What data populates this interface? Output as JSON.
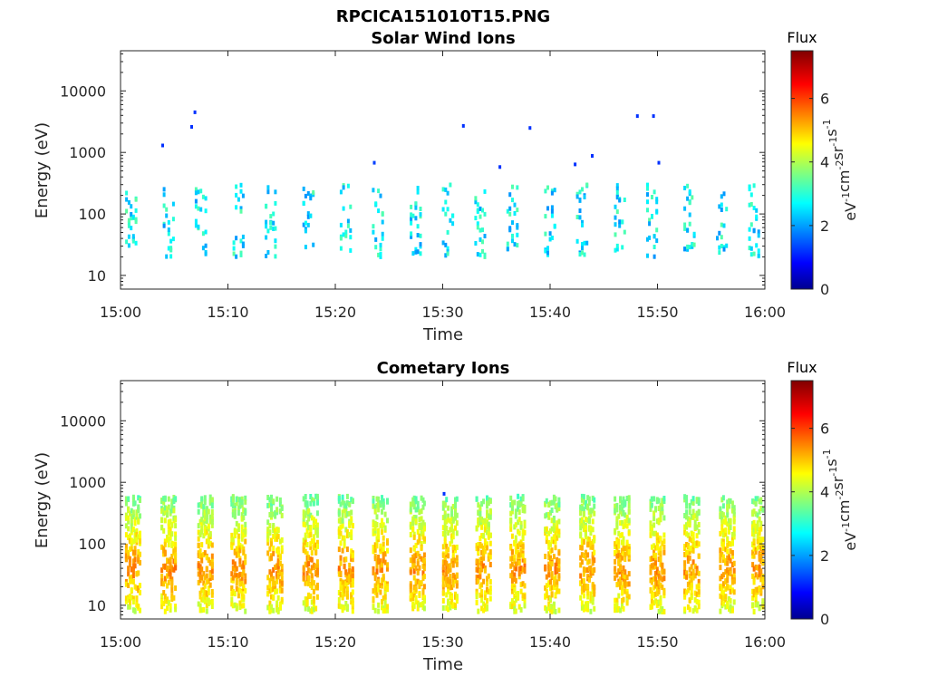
{
  "figure": {
    "title": "RPCICA151010T15.PNG"
  },
  "chart_data": [
    {
      "type": "heatmap",
      "title": "Solar Wind Ions",
      "xlabel": "Time",
      "ylabel": "Energy (eV)",
      "x_ticks": [
        "15:00",
        "15:10",
        "15:20",
        "15:30",
        "15:40",
        "15:50",
        "16:00"
      ],
      "x_range_minutes": [
        0,
        60
      ],
      "y_scale": "log",
      "y_range": [
        6,
        45000
      ],
      "y_ticks": [
        10,
        100,
        1000,
        10000
      ],
      "y_tick_labels": [
        "10",
        "100",
        "1000",
        "10000"
      ],
      "colorbar": {
        "label": "Flux",
        "unit_label": "eV-1cm-2sr-1s-1",
        "range": [
          0,
          7.5
        ],
        "ticks": [
          0,
          2,
          4,
          6
        ],
        "tick_labels": [
          "0",
          "2",
          "4",
          "6"
        ],
        "colormap": "jet"
      },
      "bursts_minutes": [
        1,
        4.5,
        7.5,
        11,
        14,
        17.5,
        21,
        24,
        27.5,
        30.5,
        33.5,
        36.5,
        40,
        43,
        46.5,
        49.5,
        53,
        56,
        59
      ],
      "burst_energy_range_eV": [
        20,
        300
      ],
      "typical_flux": [
        2,
        3.5
      ],
      "sparse_points": [
        {
          "t": 6.8,
          "e": 4500,
          "f": 1.3
        },
        {
          "t": 6.5,
          "e": 2600,
          "f": 1.3
        },
        {
          "t": 3.8,
          "e": 1300,
          "f": 1.3
        },
        {
          "t": 23.5,
          "e": 680,
          "f": 1.4
        },
        {
          "t": 31.8,
          "e": 2700,
          "f": 1.3
        },
        {
          "t": 35.2,
          "e": 580,
          "f": 1.3
        },
        {
          "t": 38,
          "e": 2500,
          "f": 1.3
        },
        {
          "t": 42.2,
          "e": 640,
          "f": 1.3
        },
        {
          "t": 43.8,
          "e": 880,
          "f": 1.3
        },
        {
          "t": 48,
          "e": 3900,
          "f": 1.3
        },
        {
          "t": 49.5,
          "e": 3900,
          "f": 1.3
        },
        {
          "t": 50,
          "e": 680,
          "f": 1.3
        }
      ]
    },
    {
      "type": "heatmap",
      "title": "Cometary Ions",
      "xlabel": "Time",
      "ylabel": "Energy (eV)",
      "x_ticks": [
        "15:00",
        "15:10",
        "15:20",
        "15:30",
        "15:40",
        "15:50",
        "16:00"
      ],
      "x_range_minutes": [
        0,
        60
      ],
      "y_scale": "log",
      "y_range": [
        6,
        45000
      ],
      "y_ticks": [
        10,
        100,
        1000,
        10000
      ],
      "y_tick_labels": [
        "10",
        "100",
        "1000",
        "10000"
      ],
      "colorbar": {
        "label": "Flux",
        "unit_label": "eV-1cm-2sr-1s-1",
        "range": [
          0,
          7.5
        ],
        "ticks": [
          0,
          2,
          4,
          6
        ],
        "tick_labels": [
          "0",
          "2",
          "4",
          "6"
        ],
        "colormap": "jet"
      },
      "bursts_minutes": [
        1,
        4.3,
        7.7,
        10.8,
        14.2,
        17.5,
        20.8,
        24,
        27.5,
        30.5,
        33.6,
        36.8,
        40,
        43.3,
        46.5,
        49.8,
        53,
        56.3,
        59.3
      ],
      "burst_energy_range_eV": [
        8,
        600
      ],
      "peak_energy_eV": 40,
      "typical_flux": [
        3,
        5.5
      ],
      "sparse_points": [
        {
          "t": 30,
          "e": 650,
          "f": 1.3
        }
      ]
    }
  ]
}
